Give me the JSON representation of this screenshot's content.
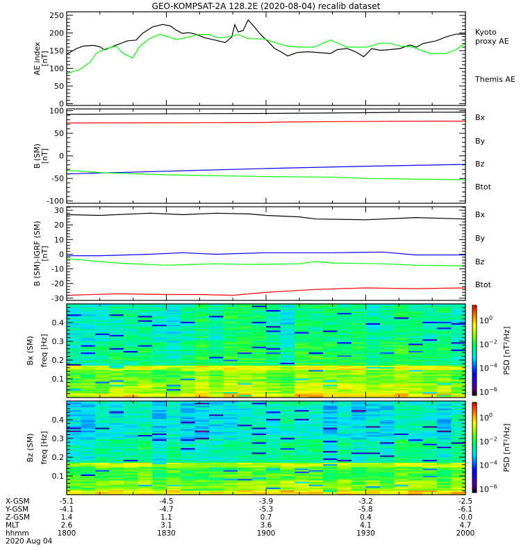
{
  "title": "GEO-KOMPSAT-2A 128.2E (2020-08-04) recalib dataset",
  "colors": {
    "black": "#000000",
    "green": "#00ff00",
    "blue": "#0000ff",
    "red": "#ff0000"
  },
  "chart_data": [
    {
      "type": "line",
      "ylabel": [
        "AE index",
        "[nT]"
      ],
      "ylim": [
        -5,
        260
      ],
      "yticks": [
        0,
        50,
        100,
        150,
        200,
        250
      ],
      "x_unit": "minutes after 1800 UT",
      "legend": [
        {
          "label": "Kyoto",
          "color": "#00ff00"
        },
        {
          "label": "proxy AE",
          "color": "#00ff00"
        },
        {
          "label": "Themis AE",
          "color": "#000000"
        }
      ],
      "series": [
        {
          "name": "Themis AE",
          "color": "#000000",
          "x": [
            0,
            3,
            5,
            8,
            10,
            11.4,
            12.9,
            14.9,
            18.4,
            20.9,
            22.8,
            25.8,
            28.8,
            31.3,
            32.8,
            34.8,
            36.7,
            38.7,
            41.7,
            44.7,
            47.7,
            49.7,
            50.6,
            51.6,
            53.1,
            54.6,
            56.6,
            58.6,
            60.6,
            62.6,
            64.5,
            66.5,
            69.5,
            72.5,
            75.5,
            79.4,
            81.4,
            84.4,
            86.9,
            89.4,
            91.8,
            94.3,
            97.3,
            100.3,
            103.3,
            105.3,
            107.2,
            111.2,
            114.2,
            117.2,
            120
          ],
          "y": [
            140,
            156,
            163,
            165,
            161,
            152,
            158,
            166,
            178,
            180,
            199,
            217,
            224,
            220,
            209,
            199,
            201,
            197,
            186,
            180,
            173,
            189,
            224,
            203,
            207,
            237,
            216,
            193,
            176,
            156,
            147,
            135,
            145,
            147,
            145,
            142,
            153,
            156,
            147,
            133,
            156,
            151,
            153,
            156,
            166,
            160,
            170,
            178,
            189,
            197,
            197
          ]
        },
        {
          "name": "Kyoto proxy AE",
          "color": "#00ff00",
          "x": [
            0,
            4,
            7,
            8.9,
            11.9,
            14.9,
            16.9,
            19.9,
            21.8,
            24.8,
            27.8,
            30.8,
            32.8,
            35.7,
            39.7,
            42.7,
            45.7,
            48.7,
            51.6,
            54.6,
            59.6,
            62.6,
            66.5,
            69.5,
            74.5,
            79.4,
            84.4,
            90.4,
            94.3,
            97.3,
            100.3,
            104.3,
            109.2,
            114.2,
            117.2,
            120
          ],
          "y": [
            85,
            97,
            117,
            143,
            156,
            163,
            143,
            129,
            160,
            183,
            196,
            189,
            182,
            186,
            196,
            196,
            186,
            189,
            196,
            184,
            183,
            173,
            163,
            160,
            160,
            180,
            160,
            160,
            171,
            171,
            163,
            160,
            142,
            142,
            153,
            171
          ]
        }
      ]
    },
    {
      "type": "line",
      "ylabel": [
        "B (SM)",
        "[nT]"
      ],
      "ylim": [
        -105,
        104
      ],
      "yticks": [
        -100,
        -50,
        0,
        50,
        100
      ],
      "legend": [
        {
          "label": "Bx",
          "color": "#0000ff"
        },
        {
          "label": "By",
          "color": "#00ff00"
        },
        {
          "label": "Bz",
          "color": "#ff0000"
        },
        {
          "label": "Btot",
          "color": "#000000"
        }
      ],
      "series": [
        {
          "name": "Btot",
          "color": "#000000",
          "x": [
            0,
            20,
            40,
            60,
            80,
            100,
            120
          ],
          "y": [
            92,
            93,
            93.5,
            94,
            95,
            96.5,
            97
          ]
        },
        {
          "name": "Bz",
          "color": "#ff0000",
          "x": [
            0,
            40,
            60,
            65,
            85,
            110,
            120
          ],
          "y": [
            73,
            73.5,
            74,
            75,
            76,
            77,
            77
          ]
        },
        {
          "name": "Bx",
          "color": "#0000ff",
          "x": [
            0,
            10,
            30,
            60,
            90,
            120
          ],
          "y": [
            -40,
            -38,
            -34,
            -28,
            -23,
            -19
          ]
        },
        {
          "name": "By",
          "color": "#00ff00",
          "x": [
            0,
            10,
            30,
            60,
            80,
            90,
            120
          ],
          "y": [
            -32,
            -37,
            -42,
            -46,
            -47,
            -50,
            -53
          ]
        }
      ]
    },
    {
      "type": "line",
      "ylabel": [
        "B (SM)-IGRF (SM)",
        "[nT]"
      ],
      "ylim": [
        -31.5,
        32.4
      ],
      "yticks": [
        -30,
        -20,
        -10,
        0,
        10,
        20,
        30
      ],
      "legend": [
        {
          "label": "Bx",
          "color": "#0000ff"
        },
        {
          "label": "By",
          "color": "#00ff00"
        },
        {
          "label": "Bz",
          "color": "#ff0000"
        },
        {
          "label": "Btot",
          "color": "#000000"
        }
      ],
      "series": [
        {
          "name": "Btot",
          "color": "#000000",
          "x": [
            0,
            10,
            25,
            35,
            45,
            55,
            60,
            70,
            75,
            90,
            105,
            120
          ],
          "y": [
            27,
            26.5,
            28,
            27,
            28,
            27.5,
            26.5,
            25.5,
            24,
            23.5,
            25,
            24
          ]
        },
        {
          "name": "Bx",
          "color": "#0000ff",
          "x": [
            0,
            10,
            25,
            35,
            45,
            60,
            80,
            95,
            105,
            120
          ],
          "y": [
            -1,
            -1,
            0,
            1,
            0,
            1,
            1,
            1.5,
            -0.5,
            -0.5
          ]
        },
        {
          "name": "By",
          "color": "#00ff00",
          "x": [
            0,
            5,
            15,
            30,
            45,
            55,
            70,
            75,
            80,
            95,
            105,
            120
          ],
          "y": [
            -3,
            -4,
            -6,
            -7.5,
            -6.5,
            -7,
            -6.5,
            -5,
            -6,
            -6.5,
            -7.5,
            -8
          ]
        },
        {
          "name": "Bz",
          "color": "#ff0000",
          "x": [
            0,
            15,
            30,
            40,
            50,
            60,
            75,
            90,
            105,
            120
          ],
          "y": [
            -28,
            -27,
            -27.5,
            -27.5,
            -28,
            -26,
            -24,
            -23,
            -23.5,
            -23
          ]
        }
      ]
    },
    {
      "type": "heatmap",
      "ylabel": [
        "Bx (SM)",
        "freq [Hz]"
      ],
      "ylim": [
        0,
        0.5
      ],
      "yticks": [
        0.1,
        0.2,
        0.3,
        0.4
      ],
      "colorbar": {
        "label": "PSD [nT²/Hz]",
        "log_range": [
          -6.3,
          1.3
        ],
        "tick_exponents": [
          0,
          -2,
          -4,
          -6
        ]
      },
      "band_profile_log_psd": [
        [
          0.02,
          -0.3
        ],
        [
          0.08,
          -1.0
        ],
        [
          0.15,
          -1.4
        ],
        [
          0.175,
          -0.6
        ],
        [
          0.3,
          -2.2
        ],
        [
          0.5,
          -2.5
        ]
      ],
      "time_columns": 28,
      "freq_rows": 64
    },
    {
      "type": "heatmap",
      "ylabel": [
        "Bz (SM)",
        "freq [Hz]"
      ],
      "ylim": [
        0,
        0.5
      ],
      "yticks": [
        0.1,
        0.2,
        0.3,
        0.4
      ],
      "colorbar": {
        "label": "PSD [nT²/Hz]",
        "log_range": [
          -6.3,
          1.3
        ],
        "tick_exponents": [
          0,
          -2,
          -4,
          -6
        ]
      },
      "band_profile_log_psd": [
        [
          0.02,
          -0.2
        ],
        [
          0.08,
          -1.1
        ],
        [
          0.15,
          -1.6
        ],
        [
          0.175,
          -0.8
        ],
        [
          0.3,
          -2.4
        ],
        [
          0.5,
          -2.8
        ]
      ],
      "time_columns": 28,
      "freq_rows": 64
    }
  ],
  "ephemeris": {
    "rows": [
      {
        "label": "X-GSM",
        "values": [
          "-5.1",
          "-4.5",
          "-3.9",
          "-3.2",
          "-2.5"
        ]
      },
      {
        "label": "Y-GSM",
        "values": [
          "-4.1",
          "-4.7",
          "-5.3",
          "-5.8",
          "-6.1"
        ]
      },
      {
        "label": "Z-GSM",
        "values": [
          "1.4",
          "1.1",
          "0.7",
          "0.4",
          "-0.0"
        ]
      },
      {
        "label": "MLT",
        "values": [
          "2.6",
          "3.1",
          "3.6",
          "4.1",
          "4.7"
        ]
      },
      {
        "label": "hhmm",
        "values": [
          "1800",
          "1830",
          "1900",
          "1930",
          "2000"
        ]
      }
    ],
    "tick_minutes": [
      0,
      30,
      60,
      90,
      120
    ],
    "date": "2020 Aug 04"
  }
}
